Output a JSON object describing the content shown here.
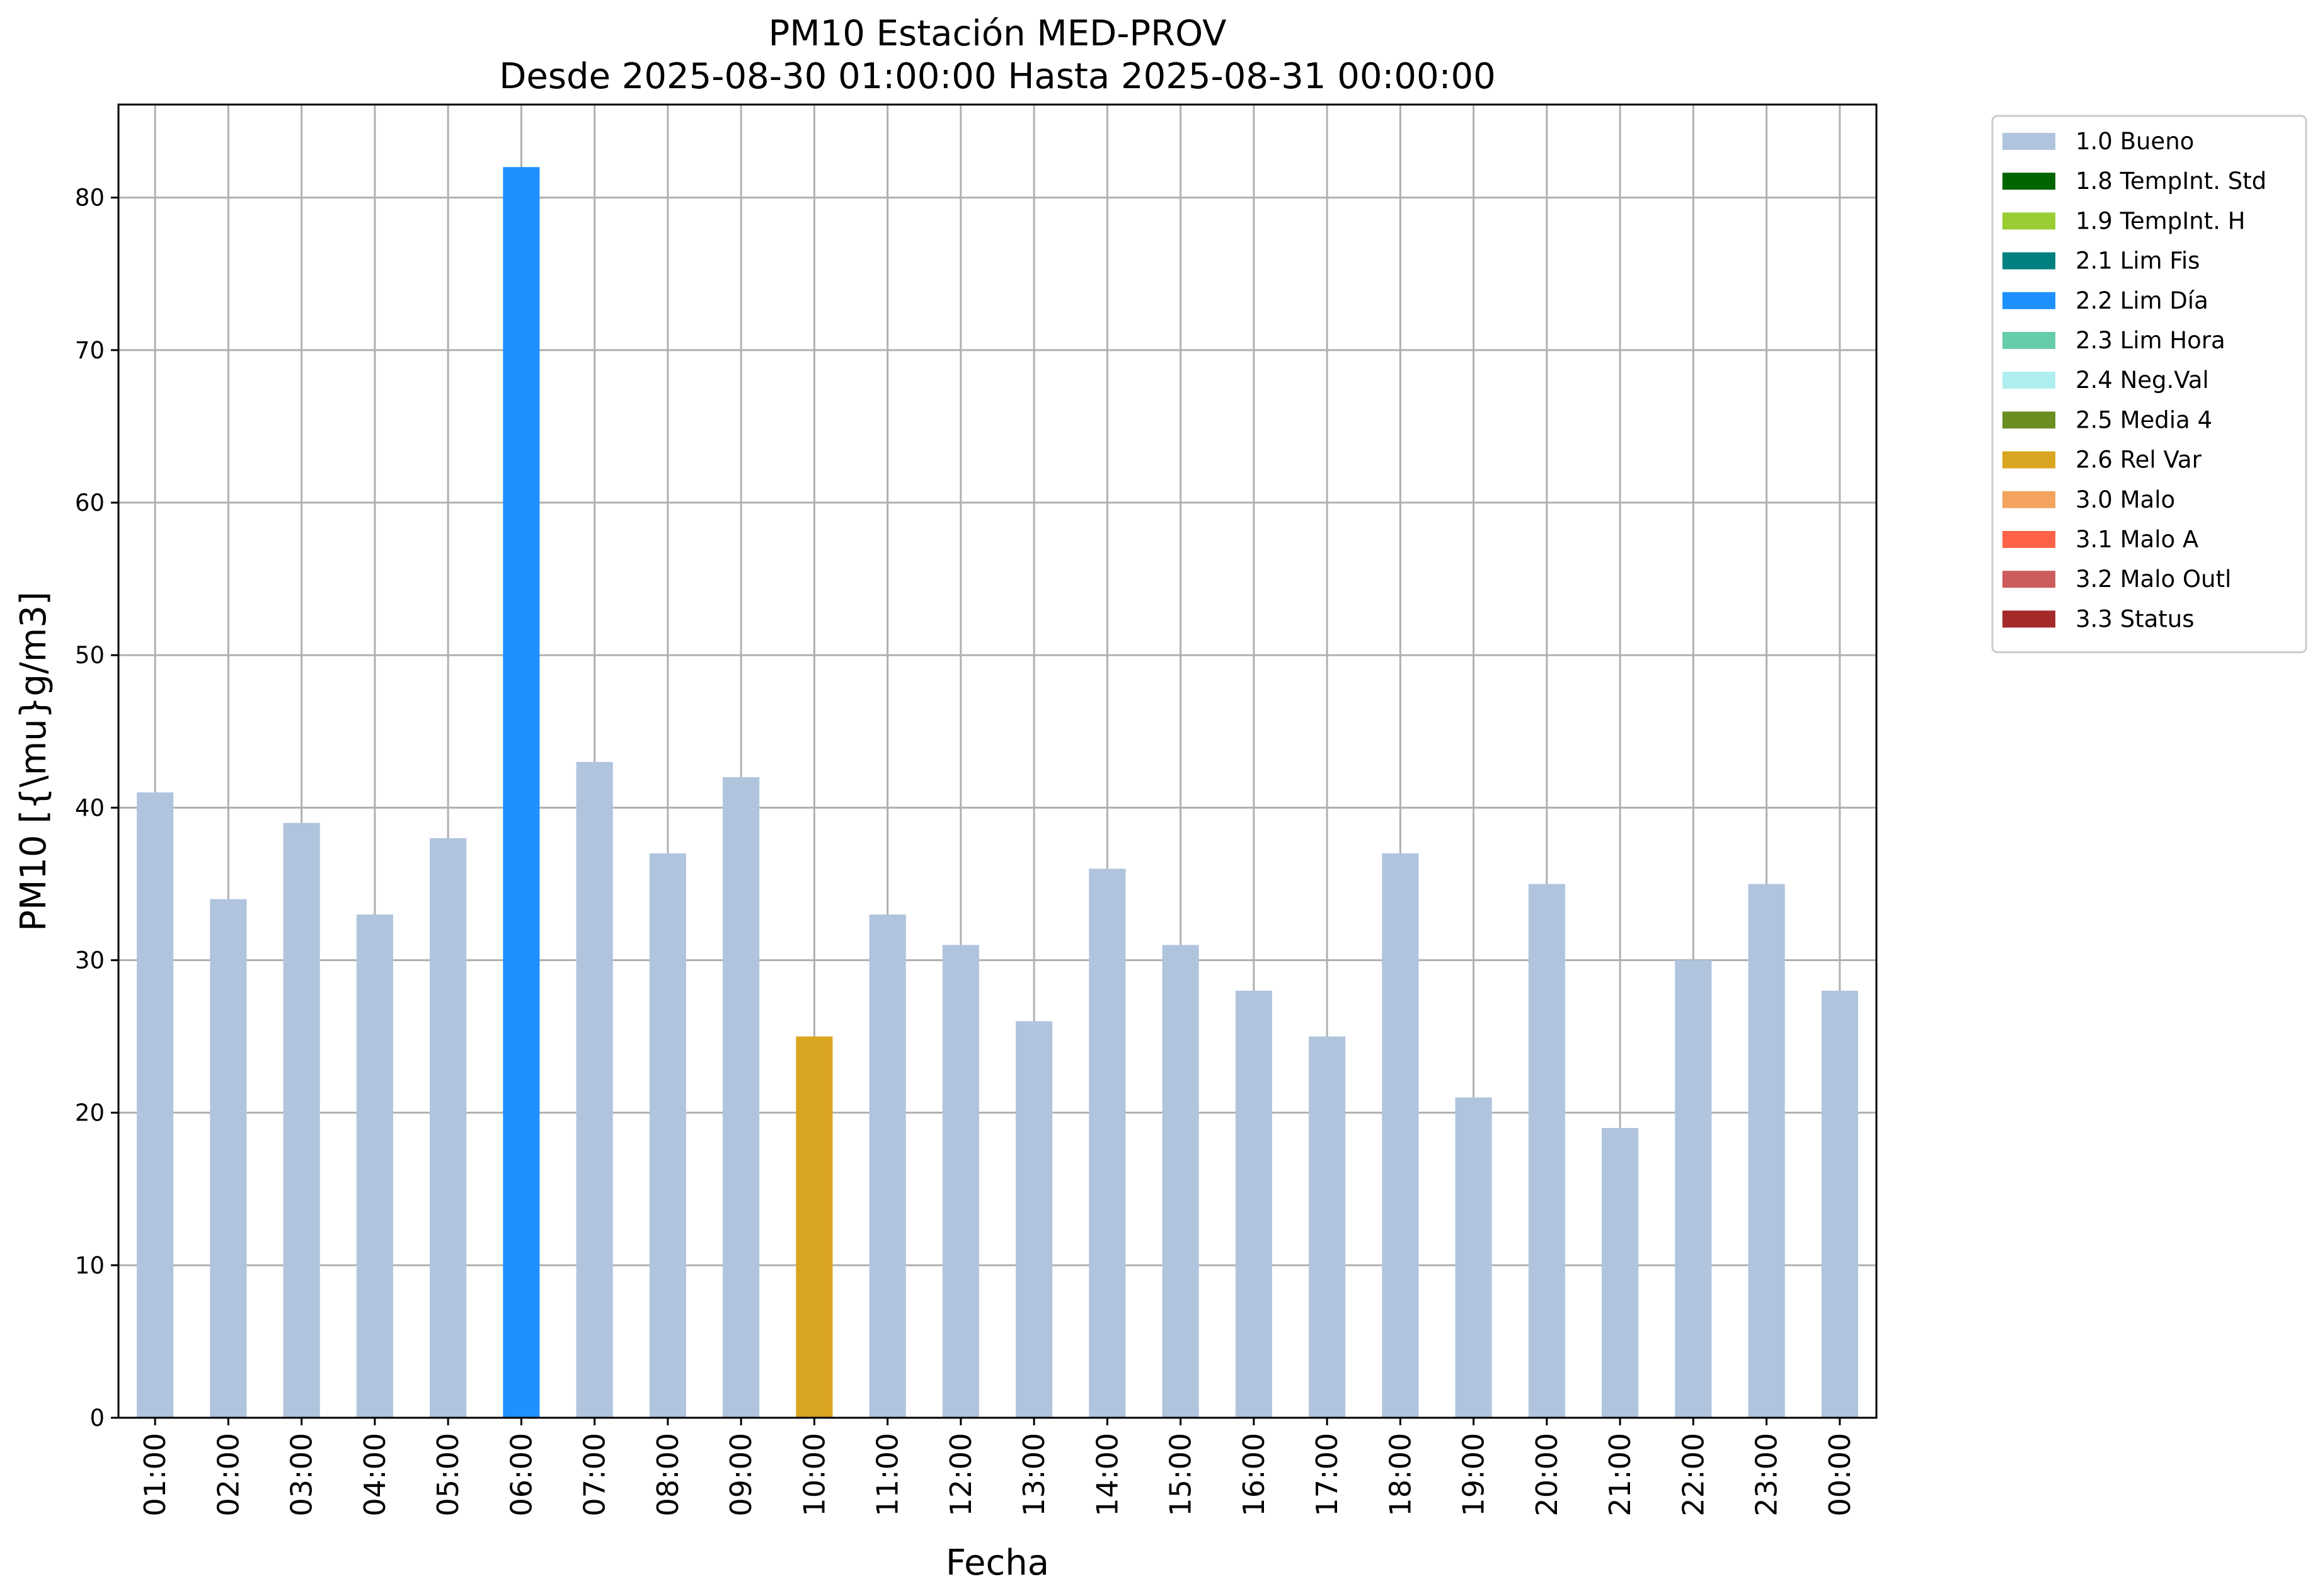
{
  "chart_data": {
    "type": "bar",
    "title": "PM10 Estación MED-PROV",
    "subtitle": "Desde 2025-08-30 01:00:00 Hasta 2025-08-31 00:00:00",
    "xlabel": "Fecha",
    "ylabel": "PM10 [{\\mu}g/m3]",
    "ylim": [
      0,
      86.1
    ],
    "yticks": [
      0,
      10,
      20,
      30,
      40,
      50,
      60,
      70,
      80
    ],
    "grid": true,
    "legend_position": "outside-right-top",
    "categories": [
      "01:00",
      "02:00",
      "03:00",
      "04:00",
      "05:00",
      "06:00",
      "07:00",
      "08:00",
      "09:00",
      "10:00",
      "11:00",
      "12:00",
      "13:00",
      "14:00",
      "15:00",
      "16:00",
      "17:00",
      "18:00",
      "19:00",
      "20:00",
      "21:00",
      "22:00",
      "23:00",
      "00:00"
    ],
    "values": [
      41,
      34,
      39,
      33,
      38,
      82,
      43,
      37,
      42,
      25,
      33,
      31,
      26,
      36,
      31,
      28,
      25,
      37,
      21,
      35,
      19,
      30,
      35,
      28
    ],
    "flags": [
      "1.0 Bueno",
      "1.0 Bueno",
      "1.0 Bueno",
      "1.0 Bueno",
      "1.0 Bueno",
      "2.2 Lim Día",
      "1.0 Bueno",
      "1.0 Bueno",
      "1.0 Bueno",
      "2.6 Rel Var",
      "1.0 Bueno",
      "1.0 Bueno",
      "1.0 Bueno",
      "1.0 Bueno",
      "1.0 Bueno",
      "1.0 Bueno",
      "1.0 Bueno",
      "1.0 Bueno",
      "1.0 Bueno",
      "1.0 Bueno",
      "1.0 Bueno",
      "1.0 Bueno",
      "1.0 Bueno",
      "1.0 Bueno"
    ],
    "legend": [
      {
        "label": "1.0 Bueno",
        "color": "#b0c4de"
      },
      {
        "label": "1.8 TempInt. Std",
        "color": "#006400"
      },
      {
        "label": "1.9 TempInt. H",
        "color": "#9acd32"
      },
      {
        "label": "2.1 Lim Fis",
        "color": "#008080"
      },
      {
        "label": "2.2 Lim Día",
        "color": "#1e90ff"
      },
      {
        "label": "2.3 Lim Hora",
        "color": "#66cdaa"
      },
      {
        "label": "2.4 Neg.Val",
        "color": "#afeeee"
      },
      {
        "label": "2.5 Media 4",
        "color": "#6b8e23"
      },
      {
        "label": "2.6 Rel Var",
        "color": "#daa520"
      },
      {
        "label": "3.0 Malo",
        "color": "#f4a460"
      },
      {
        "label": "3.1 Malo A",
        "color": "#ff6347"
      },
      {
        "label": "3.2 Malo Outl",
        "color": "#cd5c5c"
      },
      {
        "label": "3.3 Status",
        "color": "#a52a2a"
      }
    ]
  }
}
